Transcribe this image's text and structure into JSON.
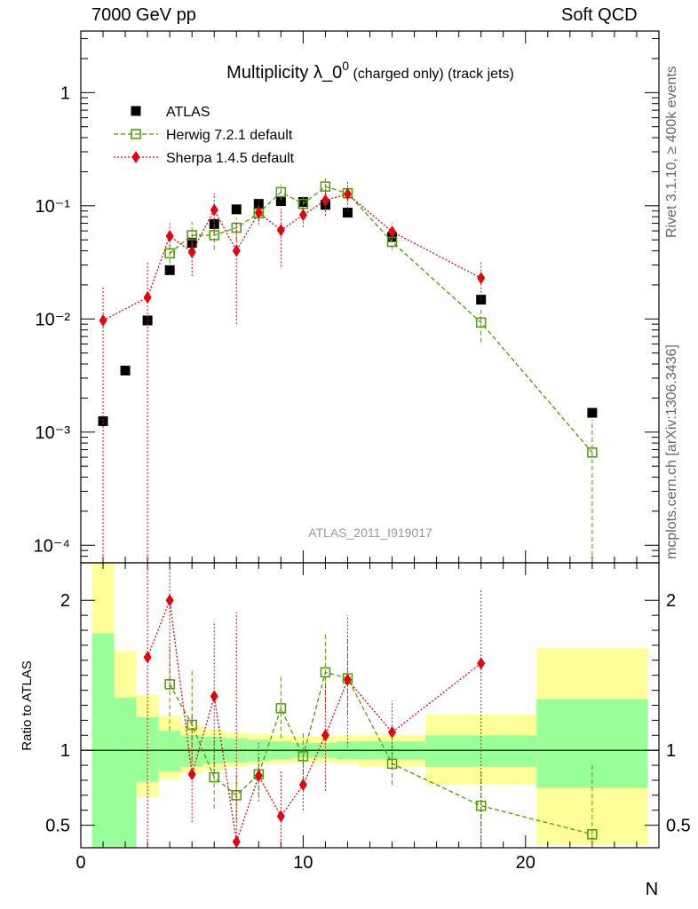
{
  "header": {
    "energy_label": "7000 GeV pp",
    "process_label": "Soft QCD"
  },
  "side_labels": {
    "rivet": "Rivet 3.1.10, ≥ 400k events",
    "mcplots": "mcplots.cern.ch [arXiv:1306.3436]"
  },
  "chart_data": [
    {
      "type": "scatter",
      "panel": "main",
      "title_main": "Multiplicity λ_0",
      "title_sup": "0",
      "title_suffix": " (charged only) (track jets)",
      "analysis_id": "ATLAS_2011_I919017",
      "yscale": "log",
      "xlim": [
        0,
        26
      ],
      "ylim": [
        7e-05,
        3.5
      ],
      "ytick_labels": [
        "10⁻⁴",
        "10⁻³",
        "10⁻²",
        "10⁻¹",
        "1"
      ],
      "ytick_values": [
        0.0001,
        0.001,
        0.01,
        0.1,
        1
      ],
      "legend_position": "top-left",
      "series": [
        {
          "name": "ATLAS",
          "color": "#000000",
          "marker": "filled-square",
          "x": [
            1,
            2,
            3,
            4,
            5,
            6,
            7,
            8,
            9,
            10,
            11,
            12,
            14,
            18,
            23
          ],
          "y": [
            0.00125,
            0.0035,
            0.0097,
            0.027,
            0.047,
            0.069,
            0.093,
            0.104,
            0.11,
            0.108,
            0.102,
            0.087,
            0.053,
            0.0148,
            0.00148
          ]
        },
        {
          "name": "Herwig 7.2.1 default",
          "color": "#4e9a06",
          "marker": "open-square",
          "line": "dashed",
          "x": [
            4,
            5,
            6,
            7,
            8,
            9,
            10,
            11,
            12,
            14,
            18,
            23
          ],
          "y": [
            0.038,
            0.055,
            0.055,
            0.064,
            0.086,
            0.132,
            0.104,
            0.148,
            0.129,
            0.048,
            0.0093,
            0.00066
          ],
          "err_low": [
            0.031,
            0.044,
            0.041,
            0.049,
            0.072,
            0.112,
            0.087,
            0.124,
            0.108,
            0.041,
            0.0062,
            1e-05
          ],
          "err_high": [
            0.046,
            0.072,
            0.075,
            0.078,
            0.101,
            0.155,
            0.121,
            0.175,
            0.151,
            0.055,
            0.0124,
            0.0013
          ]
        },
        {
          "name": "Sherpa 1.4.5 default",
          "color": "#e8000b",
          "marker": "diamond",
          "line": "dotted",
          "x": [
            1,
            3,
            4,
            5,
            6,
            7,
            8,
            9,
            10,
            11,
            12,
            14,
            18
          ],
          "y": [
            0.0097,
            0.0155,
            0.054,
            0.039,
            0.092,
            0.04,
            0.087,
            0.061,
            0.083,
            0.112,
            0.127,
            0.059,
            0.023
          ],
          "err_low": [
            1e-05,
            1e-05,
            0.038,
            0.024,
            0.057,
            0.009,
            0.068,
            0.029,
            0.065,
            0.082,
            0.088,
            0.048,
            0.0148
          ],
          "err_high": [
            0.0195,
            0.032,
            0.073,
            0.058,
            0.128,
            0.071,
            0.108,
            0.094,
            0.104,
            0.145,
            0.164,
            0.07,
            0.032
          ]
        }
      ]
    },
    {
      "type": "scatter",
      "panel": "ratio",
      "ylabel": "Ratio to ATLAS",
      "xlabel": "N",
      "xlim": [
        0,
        26
      ],
      "ylim": [
        0.35,
        2.25
      ],
      "xtick_labels": [
        "0",
        "10",
        "20"
      ],
      "xtick_values": [
        0,
        10,
        20
      ],
      "ytick_labels": [
        "0.5",
        "1",
        "2"
      ],
      "ytick_values": [
        0.5,
        1,
        2
      ],
      "band_colors": {
        "stat": "#99ff99",
        "total": "#ffff99"
      },
      "bands": [
        {
          "x0": 0.5,
          "x1": 1.5,
          "stat_lo": 0.35,
          "stat_hi": 1.78,
          "tot_lo": 0.35,
          "tot_hi": 2.25
        },
        {
          "x0": 1.5,
          "x1": 2.5,
          "stat_lo": 0.35,
          "stat_hi": 1.35,
          "tot_lo": 0.35,
          "tot_hi": 1.66
        },
        {
          "x0": 2.5,
          "x1": 3.5,
          "stat_lo": 0.79,
          "stat_hi": 1.22,
          "tot_lo": 0.69,
          "tot_hi": 1.37
        },
        {
          "x0": 3.5,
          "x1": 4.5,
          "stat_lo": 0.86,
          "stat_hi": 1.13,
          "tot_lo": 0.81,
          "tot_hi": 1.23
        },
        {
          "x0": 4.5,
          "x1": 5.5,
          "stat_lo": 0.89,
          "stat_hi": 1.1,
          "tot_lo": 0.85,
          "tot_hi": 1.17
        },
        {
          "x0": 5.5,
          "x1": 6.5,
          "stat_lo": 0.91,
          "stat_hi": 1.09,
          "tot_lo": 0.87,
          "tot_hi": 1.14
        },
        {
          "x0": 6.5,
          "x1": 7.5,
          "stat_lo": 0.92,
          "stat_hi": 1.08,
          "tot_lo": 0.89,
          "tot_hi": 1.12
        },
        {
          "x0": 7.5,
          "x1": 8.5,
          "stat_lo": 0.93,
          "stat_hi": 1.07,
          "tot_lo": 0.9,
          "tot_hi": 1.11
        },
        {
          "x0": 8.5,
          "x1": 9.5,
          "stat_lo": 0.94,
          "stat_hi": 1.06,
          "tot_lo": 0.91,
          "tot_hi": 1.1
        },
        {
          "x0": 9.5,
          "x1": 10.5,
          "stat_lo": 0.95,
          "stat_hi": 1.05,
          "tot_lo": 0.92,
          "tot_hi": 1.09
        },
        {
          "x0": 10.5,
          "x1": 11.5,
          "stat_lo": 0.95,
          "stat_hi": 1.05,
          "tot_lo": 0.92,
          "tot_hi": 1.09
        },
        {
          "x0": 11.5,
          "x1": 12.5,
          "stat_lo": 0.94,
          "stat_hi": 1.06,
          "tot_lo": 0.91,
          "tot_hi": 1.1
        },
        {
          "x0": 12.5,
          "x1": 15.5,
          "stat_lo": 0.94,
          "stat_hi": 1.06,
          "tot_lo": 0.89,
          "tot_hi": 1.1
        },
        {
          "x0": 15.5,
          "x1": 20.5,
          "stat_lo": 0.89,
          "stat_hi": 1.1,
          "tot_lo": 0.77,
          "tot_hi": 1.24
        },
        {
          "x0": 20.5,
          "x1": 25.5,
          "stat_lo": 0.75,
          "stat_hi": 1.34,
          "tot_lo": 0.37,
          "tot_hi": 1.68
        }
      ],
      "series": [
        {
          "name": "Herwig 7.2.1 default",
          "color": "#4e9a06",
          "marker": "open-square",
          "line": "dashed",
          "x": [
            4,
            5,
            6,
            7,
            8,
            9,
            10,
            11,
            12,
            14,
            18,
            23
          ],
          "y": [
            1.44,
            1.17,
            0.82,
            0.7,
            0.84,
            1.28,
            0.96,
            1.52,
            1.48,
            0.91,
            0.63,
            0.44
          ],
          "err_low": [
            1.13,
            0.93,
            0.61,
            0.53,
            0.69,
            1.08,
            0.8,
            1.27,
            1.24,
            0.77,
            0.35,
            0.35
          ],
          "err_high": [
            1.71,
            1.53,
            1.09,
            0.84,
            0.97,
            1.49,
            1.12,
            1.79,
            1.74,
            1.04,
            0.86,
            0.91
          ]
        },
        {
          "name": "Sherpa 1.4.5 default",
          "color": "#e8000b",
          "marker": "diamond",
          "line": "dotted",
          "x": [
            3,
            4,
            5,
            6,
            7,
            8,
            9,
            10,
            11,
            12,
            14,
            18
          ],
          "y": [
            1.62,
            2.0,
            0.84,
            1.36,
            0.39,
            0.83,
            0.56,
            0.77,
            1.1,
            1.47,
            1.12,
            1.58
          ],
          "err_low": [
            0.35,
            1.42,
            0.52,
            0.84,
            0.35,
            0.66,
            0.35,
            0.6,
            0.73,
            1.02,
            0.9,
            0.35
          ],
          "err_high": [
            2.25,
            2.25,
            1.24,
            1.86,
            1.92,
            1.05,
            0.86,
            0.95,
            1.45,
            1.9,
            1.33,
            2.08
          ]
        }
      ]
    }
  ]
}
